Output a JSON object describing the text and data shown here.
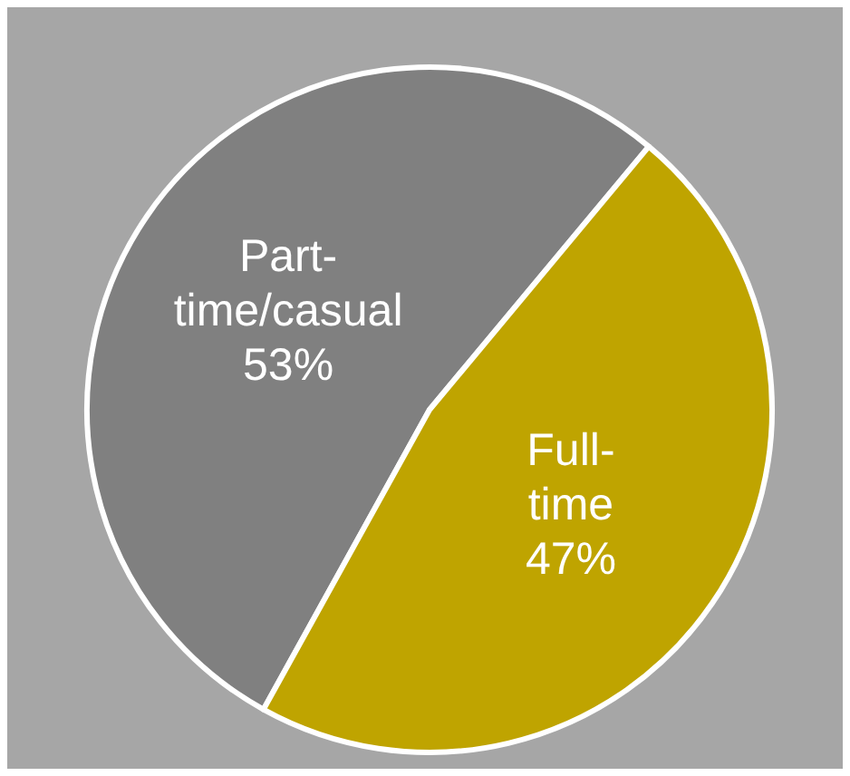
{
  "chart_data": {
    "type": "pie",
    "categories": [
      "Part-time/casual",
      "Full-time"
    ],
    "values": [
      53,
      47
    ],
    "colors": [
      "#808080",
      "#bfa400"
    ],
    "value_labels": [
      "53%",
      "47%"
    ]
  }
}
